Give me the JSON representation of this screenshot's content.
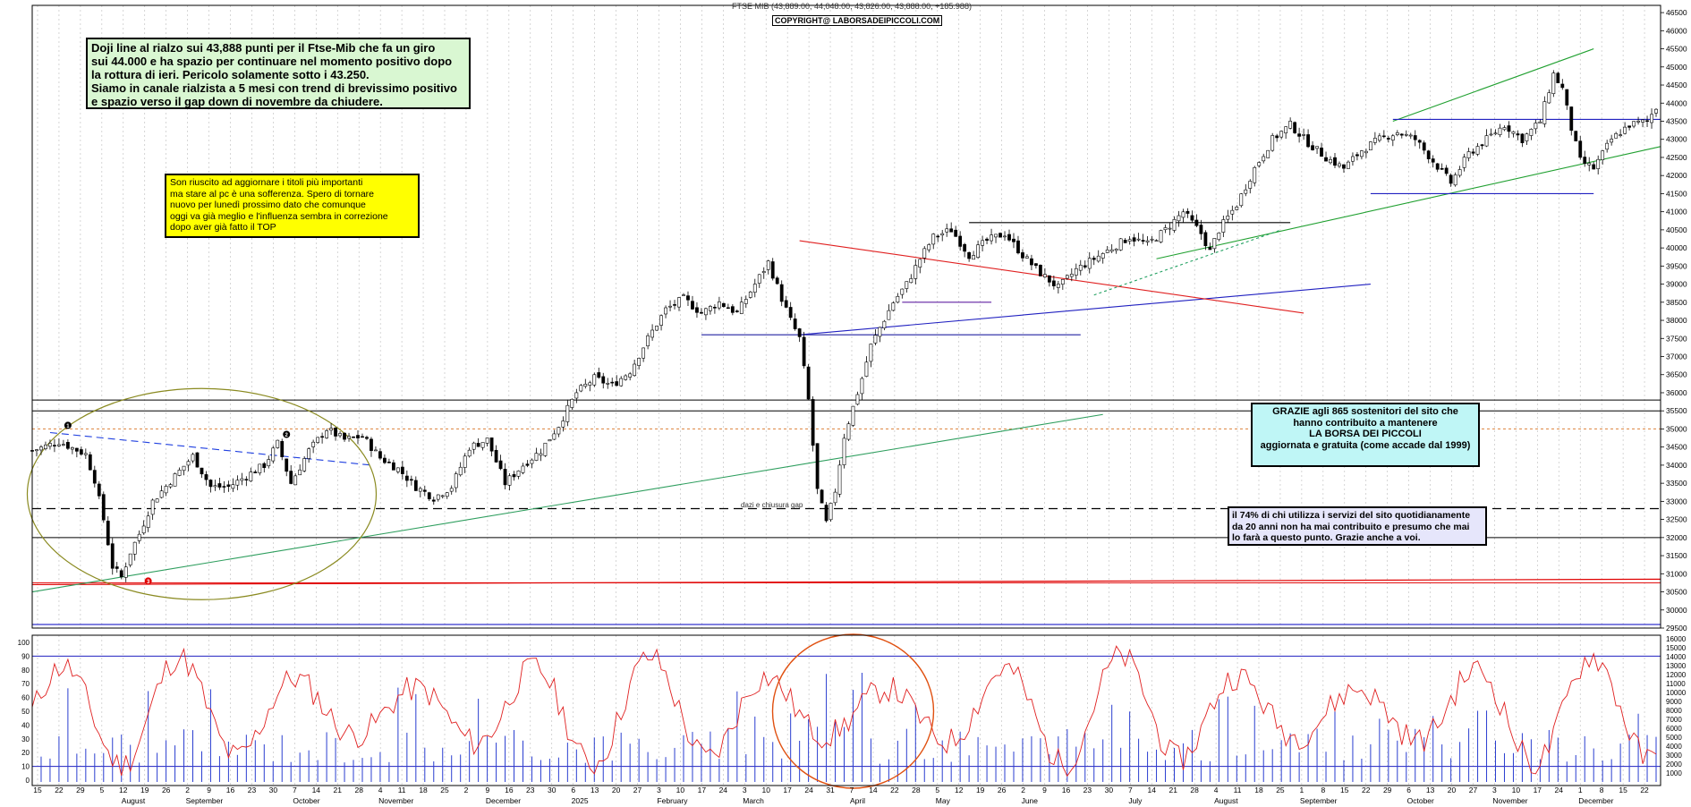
{
  "header": {
    "title": "FTSE MIB (43,889.00, 44,048.00, 43,826.00, 43,888.00, +185.988)",
    "copyright": "COPYRIGHT@ LABORSADEIPICCOLI.COM"
  },
  "notes": {
    "green": [
      "Doji line al rialzo sui 43,888 punti per il Ftse-Mib che fa un giro",
      "sui 44.000 e ha spazio per continuare nel momento positivo dopo",
      "la rottura di ieri. Pericolo solamente sotto i 43.250.",
      "Siamo in canale rialzista a 5 mesi con trend di brevissimo positivo",
      "e spazio verso il gap down di novembre da chiudere."
    ],
    "yellow": [
      "Son riuscito ad aggiornare i titoli più importanti",
      "ma stare al pc è una sofferenza. Spero di tornare",
      "nuovo per lunedì prossimo dato che comunque",
      "oggi va già meglio e l'influenza sembra in correzione",
      "dopo aver già  fatto il TOP"
    ],
    "cyan": [
      "GRAZIE  agli 865  sostenitori del sito che",
      "hanno contribuito a mantenere",
      "LA BORSA DEI PICCOLI",
      "aggiornata e gratuita (come accade dal 1999)"
    ],
    "lavender": [
      "il 74%  di chi utilizza i servizi del sito quotidianamente",
      "da 20 anni non ha mai contribuito e presumo che mai",
      "lo farà a questo punto. Grazie anche a voi."
    ],
    "dazi": "dazi e chiusura gap"
  },
  "markers": [
    "1",
    "2",
    "3"
  ],
  "chart_data": {
    "type": "candlestick",
    "title": "FTSE MIB (43,889.00, 44,048.00, 43,826.00, 43,888.00, +185.988)",
    "last_bar": {
      "open": 43889.0,
      "high": 44048.0,
      "low": 43826.0,
      "close": 43888.0,
      "change": 185.988
    },
    "ylim": [
      29500,
      46700
    ],
    "y_ticks": [
      29500,
      30000,
      30500,
      31000,
      31500,
      32000,
      32500,
      33000,
      33500,
      34000,
      34500,
      35000,
      35500,
      36000,
      36500,
      37000,
      37500,
      38000,
      38500,
      39000,
      39500,
      40000,
      40500,
      41000,
      41500,
      42000,
      42500,
      43000,
      43500,
      44000,
      44500,
      45000,
      45500,
      46000,
      46500
    ],
    "close_path": [
      {
        "x": 0,
        "y": 34400
      },
      {
        "x": 6,
        "y": 34650
      },
      {
        "x": 12,
        "y": 34300
      },
      {
        "x": 14,
        "y": 33600
      },
      {
        "x": 16,
        "y": 32500
      },
      {
        "x": 18,
        "y": 31200
      },
      {
        "x": 20,
        "y": 30900
      },
      {
        "x": 22,
        "y": 31600
      },
      {
        "x": 24,
        "y": 32100
      },
      {
        "x": 27,
        "y": 33000
      },
      {
        "x": 32,
        "y": 33700
      },
      {
        "x": 36,
        "y": 34250
      },
      {
        "x": 40,
        "y": 33400
      },
      {
        "x": 44,
        "y": 33400
      },
      {
        "x": 48,
        "y": 33700
      },
      {
        "x": 52,
        "y": 34000
      },
      {
        "x": 55,
        "y": 34600
      },
      {
        "x": 58,
        "y": 33500
      },
      {
        "x": 62,
        "y": 34400
      },
      {
        "x": 66,
        "y": 35000
      },
      {
        "x": 70,
        "y": 34700
      },
      {
        "x": 74,
        "y": 34800
      },
      {
        "x": 78,
        "y": 34200
      },
      {
        "x": 82,
        "y": 33900
      },
      {
        "x": 86,
        "y": 33400
      },
      {
        "x": 90,
        "y": 33100
      },
      {
        "x": 94,
        "y": 33400
      },
      {
        "x": 98,
        "y": 34500
      },
      {
        "x": 102,
        "y": 34700
      },
      {
        "x": 106,
        "y": 33500
      },
      {
        "x": 110,
        "y": 34000
      },
      {
        "x": 114,
        "y": 34400
      },
      {
        "x": 118,
        "y": 35100
      },
      {
        "x": 122,
        "y": 36000
      },
      {
        "x": 126,
        "y": 36400
      },
      {
        "x": 130,
        "y": 36200
      },
      {
        "x": 134,
        "y": 36600
      },
      {
        "x": 138,
        "y": 37500
      },
      {
        "x": 142,
        "y": 38300
      },
      {
        "x": 146,
        "y": 38600
      },
      {
        "x": 150,
        "y": 38200
      },
      {
        "x": 154,
        "y": 38500
      },
      {
        "x": 158,
        "y": 38200
      },
      {
        "x": 162,
        "y": 39000
      },
      {
        "x": 165,
        "y": 39600
      },
      {
        "x": 168,
        "y": 38600
      },
      {
        "x": 170,
        "y": 38000
      },
      {
        "x": 172,
        "y": 37500
      },
      {
        "x": 174,
        "y": 35800
      },
      {
        "x": 176,
        "y": 33300
      },
      {
        "x": 178,
        "y": 32400
      },
      {
        "x": 180,
        "y": 33300
      },
      {
        "x": 182,
        "y": 34800
      },
      {
        "x": 184,
        "y": 35600
      },
      {
        "x": 186,
        "y": 36400
      },
      {
        "x": 188,
        "y": 37300
      },
      {
        "x": 190,
        "y": 37800
      },
      {
        "x": 193,
        "y": 38500
      },
      {
        "x": 196,
        "y": 39000
      },
      {
        "x": 199,
        "y": 39700
      },
      {
        "x": 202,
        "y": 40300
      },
      {
        "x": 206,
        "y": 40500
      },
      {
        "x": 210,
        "y": 39800
      },
      {
        "x": 214,
        "y": 40200
      },
      {
        "x": 218,
        "y": 40400
      },
      {
        "x": 222,
        "y": 39800
      },
      {
        "x": 226,
        "y": 39300
      },
      {
        "x": 230,
        "y": 38900
      },
      {
        "x": 234,
        "y": 39400
      },
      {
        "x": 238,
        "y": 39700
      },
      {
        "x": 242,
        "y": 40000
      },
      {
        "x": 246,
        "y": 40300
      },
      {
        "x": 250,
        "y": 40100
      },
      {
        "x": 254,
        "y": 40500
      },
      {
        "x": 258,
        "y": 41000
      },
      {
        "x": 262,
        "y": 40400
      },
      {
        "x": 264,
        "y": 39900
      },
      {
        "x": 266,
        "y": 40500
      },
      {
        "x": 270,
        "y": 41200
      },
      {
        "x": 274,
        "y": 42200
      },
      {
        "x": 278,
        "y": 43000
      },
      {
        "x": 282,
        "y": 43400
      },
      {
        "x": 286,
        "y": 42900
      },
      {
        "x": 290,
        "y": 42500
      },
      {
        "x": 294,
        "y": 42200
      },
      {
        "x": 298,
        "y": 42700
      },
      {
        "x": 302,
        "y": 43000
      },
      {
        "x": 306,
        "y": 43200
      },
      {
        "x": 310,
        "y": 43000
      },
      {
        "x": 314,
        "y": 42400
      },
      {
        "x": 318,
        "y": 41800
      },
      {
        "x": 322,
        "y": 42600
      },
      {
        "x": 326,
        "y": 43000
      },
      {
        "x": 330,
        "y": 43400
      },
      {
        "x": 334,
        "y": 43000
      },
      {
        "x": 338,
        "y": 43500
      },
      {
        "x": 341,
        "y": 44800
      },
      {
        "x": 343,
        "y": 44400
      },
      {
        "x": 345,
        "y": 43300
      },
      {
        "x": 347,
        "y": 42400
      },
      {
        "x": 350,
        "y": 42200
      },
      {
        "x": 354,
        "y": 43000
      },
      {
        "x": 358,
        "y": 43400
      },
      {
        "x": 362,
        "y": 43500
      },
      {
        "x": 364,
        "y": 43888
      }
    ],
    "horizontal_levels": [
      {
        "y": 35500,
        "color": "#000000"
      },
      {
        "y": 35800,
        "color": "#000000"
      },
      {
        "y": 35000,
        "color": "#e09050",
        "dash": true
      },
      {
        "y": 32800,
        "color": "#000000",
        "dash": true
      },
      {
        "y": 32000,
        "color": "#000000"
      },
      {
        "y": 30750,
        "color": "#e00000"
      },
      {
        "y": 29600,
        "color": "#0000c0"
      }
    ],
    "oscillator": {
      "ylim": [
        0,
        100
      ],
      "y_ticks": [
        0,
        10,
        20,
        30,
        40,
        50,
        60,
        70,
        80,
        90,
        100
      ],
      "levels": [
        10,
        90
      ]
    },
    "volume": {
      "ylim": [
        0,
        16000
      ],
      "y_ticks": [
        1000,
        2000,
        3000,
        4000,
        5000,
        6000,
        7000,
        8000,
        9000,
        10000,
        11000,
        12000,
        13000,
        14000,
        15000,
        16000
      ]
    },
    "x_axis": {
      "days": [
        "15",
        "22",
        "29",
        "5",
        "12",
        "19",
        "26",
        "2",
        "9",
        "16",
        "23",
        "30",
        "7",
        "14",
        "21",
        "28",
        "4",
        "11",
        "18",
        "25",
        "2",
        "9",
        "16",
        "23",
        "30",
        "6",
        "13",
        "20",
        "27",
        "3",
        "10",
        "17",
        "24",
        "3",
        "10",
        "17",
        "24",
        "31",
        "7",
        "14",
        "22",
        "28",
        "5",
        "12",
        "19",
        "26",
        "2",
        "9",
        "16",
        "23",
        "30",
        "7",
        "14",
        "21",
        "28",
        "4",
        "11",
        "18",
        "25",
        "1",
        "8",
        "15",
        "22",
        "29",
        "6",
        "13",
        "20",
        "27",
        "3",
        "10",
        "17",
        "24",
        "1",
        "8",
        "15",
        "22"
      ],
      "months": [
        "August",
        "September",
        "October",
        "November",
        "December",
        "2025",
        "February",
        "March",
        "April",
        "May",
        "June",
        "July",
        "August",
        "September",
        "October",
        "November",
        "December"
      ]
    }
  }
}
